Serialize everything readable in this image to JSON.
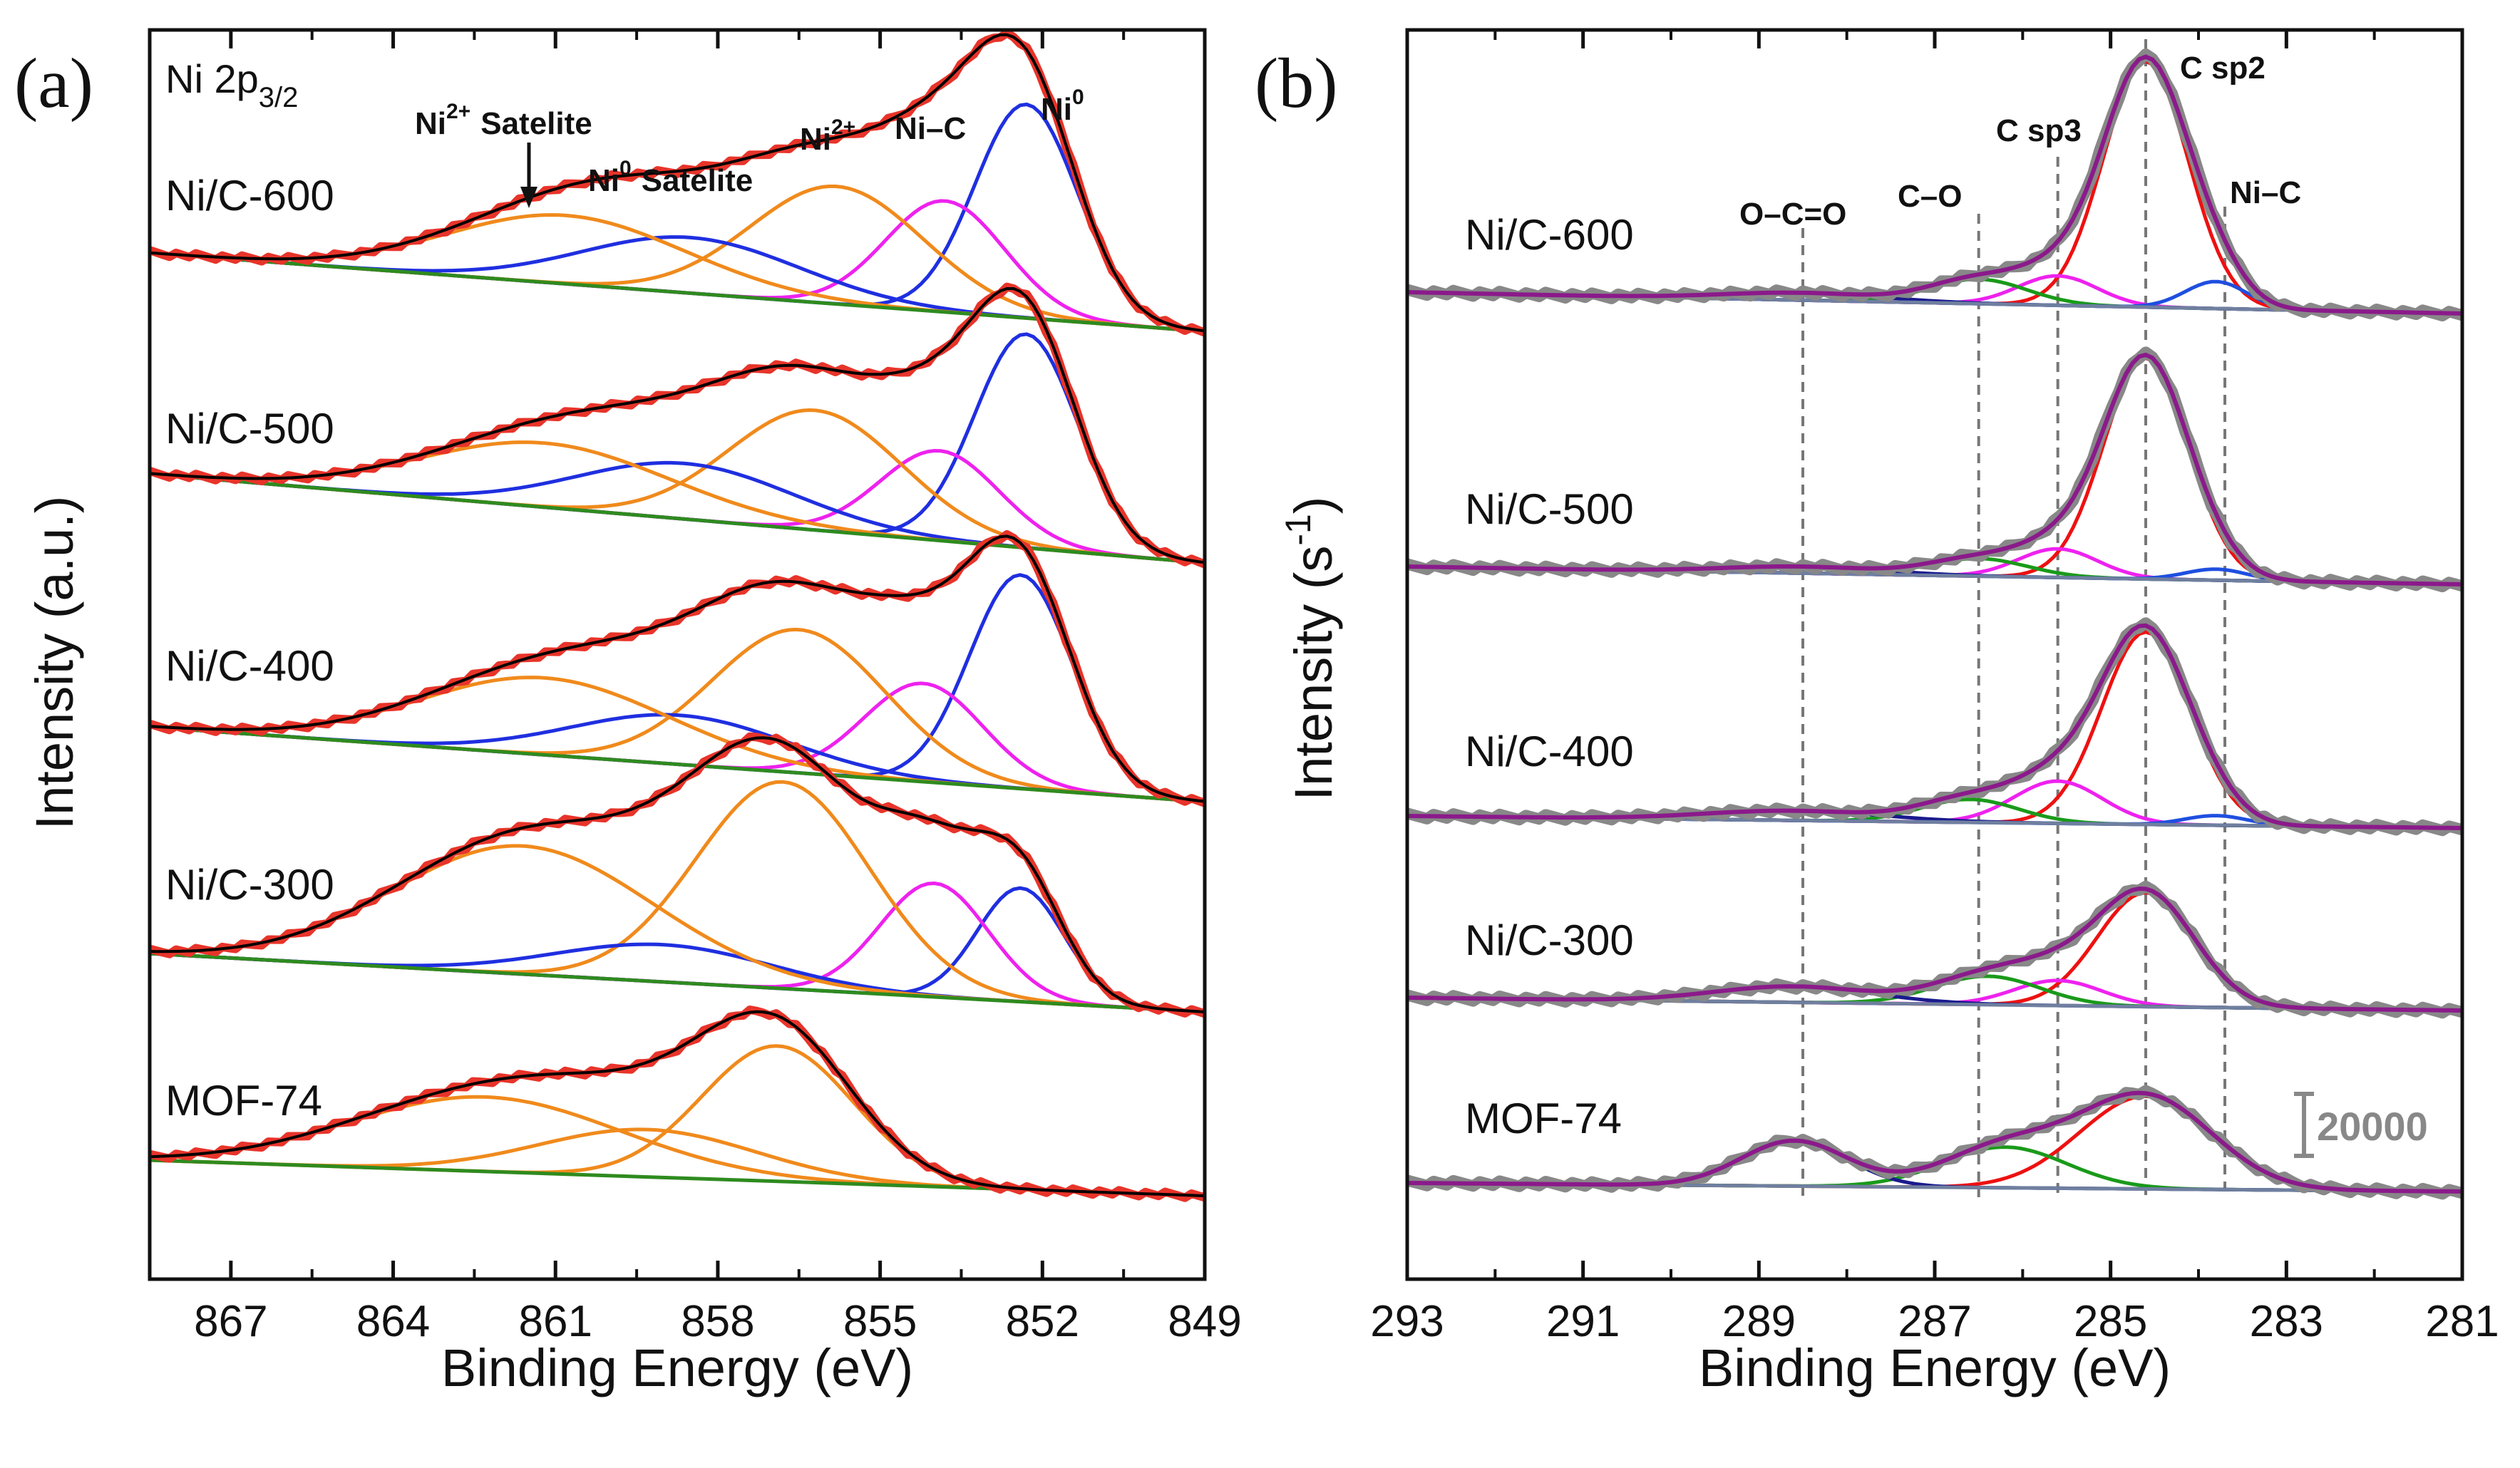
{
  "figure": {
    "panel_a_letter": "(a)",
    "panel_b_letter": "(b)"
  },
  "colors": {
    "raw_a": "#e8342a",
    "envelope_a": "#000000",
    "baseline": "#2e8b1f",
    "ni0": "#1f2fe0",
    "ni_c": "#ee22ee",
    "ni2": "#f08a1c",
    "raw_b": "#888888",
    "envelope_b": "#8b1a8b",
    "csp2": "#ee1111",
    "csp3": "#ee22ee",
    "co": "#1a9a1a",
    "oco": "#1a1a8e",
    "nic_b": "#1f4fe0",
    "baseline_b": "#6f7f9f",
    "guide": "#777777"
  },
  "chart_data": [
    {
      "type": "line",
      "panel": "a",
      "title_main": "Ni 2p",
      "title_sub": "3/2",
      "xlabel": "Binding Energy (eV)",
      "ylabel": "Intensity (a.u.)",
      "xlim": [
        868.5,
        849
      ],
      "x_reversed": true,
      "xticks": [
        867,
        864,
        861,
        858,
        855,
        852,
        849
      ],
      "y_ticks_shown": false,
      "samples": [
        {
          "name": "Ni/C-600",
          "components": [
            {
              "label": "Ni0",
              "center": 852.3,
              "width": 0.95,
              "amplitude": 1.0
            },
            {
              "label": "Ni-C",
              "center": 853.8,
              "width": 1.1,
              "amplitude": 0.52
            },
            {
              "label": "Ni2+",
              "center": 855.8,
              "width": 1.6,
              "amplitude": 0.55
            },
            {
              "label": "Ni0 satellite",
              "center": 858.5,
              "width": 2.0,
              "amplitude": 0.26
            },
            {
              "label": "Ni2+ satellite",
              "center": 860.8,
              "width": 2.2,
              "amplitude": 0.32
            }
          ]
        },
        {
          "name": "Ni/C-500",
          "components": [
            {
              "label": "Ni0",
              "center": 852.3,
              "width": 0.95,
              "amplitude": 1.0
            },
            {
              "label": "Ni-C",
              "center": 853.9,
              "width": 1.1,
              "amplitude": 0.42
            },
            {
              "label": "Ni2+",
              "center": 856.2,
              "width": 1.6,
              "amplitude": 0.56
            },
            {
              "label": "Ni0 satellite",
              "center": 858.6,
              "width": 2.0,
              "amplitude": 0.26
            },
            {
              "label": "Ni2+ satellite",
              "center": 861.2,
              "width": 2.3,
              "amplitude": 0.3
            }
          ]
        },
        {
          "name": "Ni/C-400",
          "components": [
            {
              "label": "Ni0",
              "center": 852.4,
              "width": 0.95,
              "amplitude": 1.0
            },
            {
              "label": "Ni-C",
              "center": 854.2,
              "width": 1.1,
              "amplitude": 0.46
            },
            {
              "label": "Ni2+",
              "center": 856.5,
              "width": 1.6,
              "amplitude": 0.67
            },
            {
              "label": "Ni0 satellite",
              "center": 858.7,
              "width": 2.0,
              "amplitude": 0.23
            },
            {
              "label": "Ni2+ satellite",
              "center": 861.2,
              "width": 2.3,
              "amplitude": 0.36
            }
          ]
        },
        {
          "name": "Ni/C-300",
          "components": [
            {
              "label": "Ni0",
              "center": 852.4,
              "width": 0.8,
              "amplitude": 0.55
            },
            {
              "label": "Ni-C",
              "center": 854.0,
              "width": 1.0,
              "amplitude": 0.55
            },
            {
              "label": "Ni2+",
              "center": 856.8,
              "width": 1.6,
              "amplitude": 1.0
            },
            {
              "label": "Ni0 satellite",
              "center": 859.0,
              "width": 2.0,
              "amplitude": 0.18
            },
            {
              "label": "Ni2+ satellite",
              "center": 861.6,
              "width": 2.4,
              "amplitude": 0.62
            }
          ]
        },
        {
          "name": "MOF-74",
          "components": [
            {
              "label": "Ni2+",
              "center": 856.9,
              "width": 1.4,
              "amplitude": 1.0
            },
            {
              "label": "Ni2+ satellite (low)",
              "center": 859.3,
              "width": 2.0,
              "amplitude": 0.35
            },
            {
              "label": "Ni2+ satellite (high)",
              "center": 862.3,
              "width": 2.5,
              "amplitude": 0.55
            }
          ]
        }
      ],
      "annotations": [
        {
          "base": "Ni",
          "sup": "2+",
          "text": "Satelite"
        },
        {
          "base": "Ni",
          "sup": "0",
          "text": "Satelite"
        },
        {
          "base": "Ni",
          "sup": "2+",
          "text": ""
        },
        {
          "base": "",
          "sup": "",
          "text": "Ni–C"
        },
        {
          "base": "Ni",
          "sup": "0",
          "text": ""
        }
      ]
    },
    {
      "type": "line",
      "panel": "b",
      "xlabel": "Binding Energy (eV)",
      "ylabel_main": "Intensity (s",
      "ylabel_sup": "-1",
      "ylabel_close": ")",
      "xlim": [
        293,
        281
      ],
      "x_reversed": true,
      "xticks": [
        293,
        291,
        289,
        287,
        285,
        283,
        281
      ],
      "y_ticks_shown": false,
      "guide_lines": [
        288.5,
        286.5,
        285.6,
        284.6,
        283.7
      ],
      "annotations": [
        "O–C=O",
        "C–O",
        "C sp3",
        "C sp2",
        "Ni–C"
      ],
      "scale_bar": {
        "value": 20000,
        "label": "20000"
      },
      "samples": [
        {
          "name": "Ni/C-600",
          "components": [
            {
              "label": "C sp2",
              "center": 284.6,
              "width": 0.48,
              "amplitude": 1.0
            },
            {
              "label": "C sp3",
              "center": 285.6,
              "width": 0.45,
              "amplitude": 0.12
            },
            {
              "label": "C–O",
              "center": 286.5,
              "width": 0.55,
              "amplitude": 0.1
            },
            {
              "label": "O–C=O",
              "center": 288.5,
              "width": 0.9,
              "amplitude": 0.03
            },
            {
              "label": "Ni–C",
              "center": 283.8,
              "width": 0.35,
              "amplitude": 0.11
            }
          ]
        },
        {
          "name": "Ni/C-500",
          "components": [
            {
              "label": "C sp2",
              "center": 284.6,
              "width": 0.48,
              "amplitude": 1.0
            },
            {
              "label": "C sp3",
              "center": 285.6,
              "width": 0.45,
              "amplitude": 0.13
            },
            {
              "label": "C–O",
              "center": 286.5,
              "width": 0.55,
              "amplitude": 0.08
            },
            {
              "label": "O–C=O",
              "center": 288.5,
              "width": 0.9,
              "amplitude": 0.03
            },
            {
              "label": "Ni–C",
              "center": 283.8,
              "width": 0.35,
              "amplitude": 0.05
            }
          ]
        },
        {
          "name": "Ni/C-400",
          "components": [
            {
              "label": "C sp2",
              "center": 284.6,
              "width": 0.5,
              "amplitude": 1.0
            },
            {
              "label": "C sp3",
              "center": 285.6,
              "width": 0.5,
              "amplitude": 0.22
            },
            {
              "label": "C–O",
              "center": 286.6,
              "width": 0.55,
              "amplitude": 0.12
            },
            {
              "label": "O–C=O",
              "center": 288.6,
              "width": 1.0,
              "amplitude": 0.05
            },
            {
              "label": "Ni–C",
              "center": 283.8,
              "width": 0.35,
              "amplitude": 0.05
            }
          ]
        },
        {
          "name": "Ni/C-300",
          "components": [
            {
              "label": "C sp2",
              "center": 284.6,
              "width": 0.55,
              "amplitude": 1.0
            },
            {
              "label": "C sp3",
              "center": 285.6,
              "width": 0.5,
              "amplitude": 0.22
            },
            {
              "label": "C–O",
              "center": 286.4,
              "width": 0.6,
              "amplitude": 0.25
            },
            {
              "label": "O–C=O",
              "center": 288.6,
              "width": 0.9,
              "amplitude": 0.14
            }
          ]
        },
        {
          "name": "MOF-74",
          "components": [
            {
              "label": "C sp2",
              "center": 284.6,
              "width": 0.75,
              "amplitude": 1.0
            },
            {
              "label": "C–O",
              "center": 286.2,
              "width": 0.7,
              "amplitude": 0.44
            },
            {
              "label": "O–C=O",
              "center": 288.6,
              "width": 0.6,
              "amplitude": 0.49
            }
          ]
        }
      ]
    }
  ]
}
